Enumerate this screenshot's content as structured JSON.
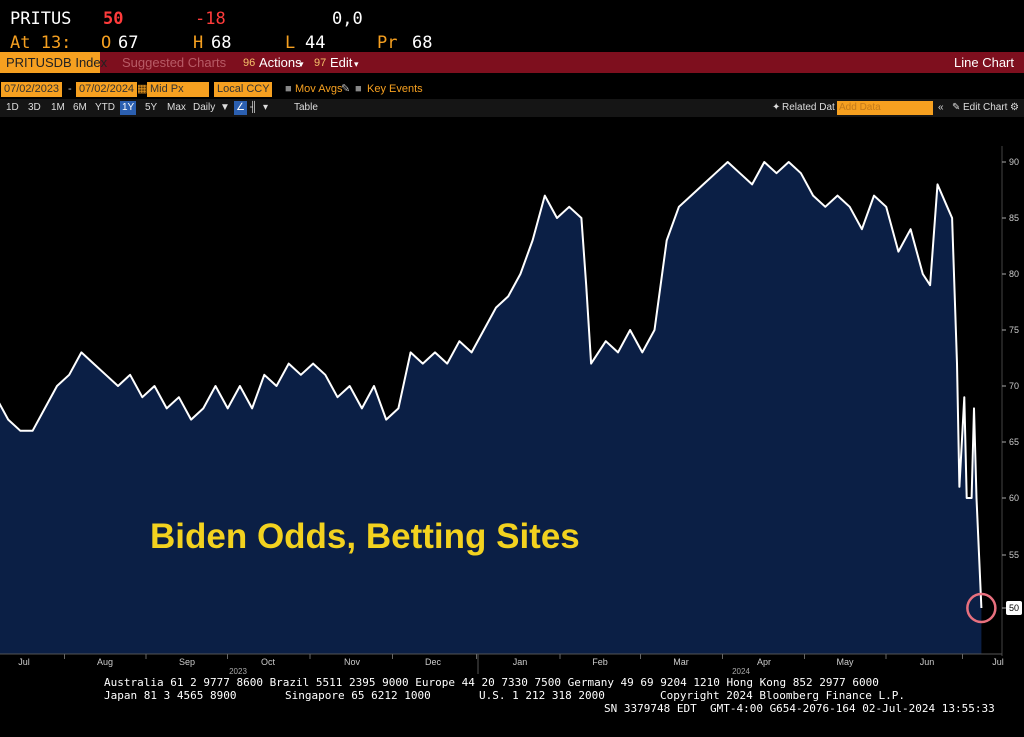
{
  "quote": {
    "ticker": "PRITUS",
    "last": "50",
    "change": "-18",
    "bid_ask": "0,0",
    "time_label": "At 13:",
    "open_label": "O",
    "open": "67",
    "high_label": "H",
    "high": "68",
    "low_label": "L",
    "low": "44",
    "prev_label": "Pr",
    "prev": "68"
  },
  "toolbar": {
    "security": "PRITUSDB Index",
    "suggested": "Suggested Charts",
    "actions_num": "96",
    "actions": "Actions",
    "edit_num": "97",
    "edit": "Edit",
    "chart_type": "Line Chart"
  },
  "settings": {
    "start_date": "07/02/2023",
    "end_date": "07/02/2024",
    "price_field": "Mid Px",
    "currency": "Local CCY",
    "mov_avgs": "Mov Avgs",
    "key_events": "Key Events"
  },
  "periods": [
    "1D",
    "3D",
    "1M",
    "6M",
    "YTD",
    "1Y",
    "5Y",
    "Max"
  ],
  "selected_period": "1Y",
  "frequency": "Daily",
  "table_label": "Table",
  "related_data": "Related Dat",
  "add_data_placeholder": "Add Data",
  "edit_chart": "Edit Chart",
  "colors": {
    "background": "#000000",
    "plot_fill": "#0b1f45",
    "line": "#ffffff",
    "title_text": "#f3d21f",
    "marker_circle": "#e8707e",
    "ticker_orange": "#f6a020",
    "toolbar_red": "#7e0f1e",
    "quote_change_red": "#ff3b3b"
  },
  "chart_data": {
    "type": "area",
    "title": "Biden Odds, Betting Sites",
    "x_tick_labels": [
      "Jul",
      "Aug",
      "Sep",
      "Oct",
      "Nov",
      "Dec",
      "Jan",
      "Feb",
      "Mar",
      "Apr",
      "May",
      "Jun",
      "Jul"
    ],
    "year_labels": [
      "2023",
      "2024"
    ],
    "y_ticks": [
      50,
      55,
      60,
      65,
      70,
      75,
      80,
      85,
      90
    ],
    "ylim": [
      44,
      92
    ],
    "last_value_label": "50",
    "x_unit": "days since Jul 3, 2023",
    "series": [
      {
        "points": [
          [
            0,
            69
          ],
          [
            5,
            67
          ],
          [
            10,
            66
          ],
          [
            15,
            66
          ],
          [
            20,
            68
          ],
          [
            25,
            70
          ],
          [
            30,
            71
          ],
          [
            35,
            73
          ],
          [
            40,
            72
          ],
          [
            45,
            71
          ],
          [
            50,
            70
          ],
          [
            55,
            71
          ],
          [
            60,
            69
          ],
          [
            65,
            70
          ],
          [
            70,
            68
          ],
          [
            75,
            69
          ],
          [
            80,
            67
          ],
          [
            85,
            68
          ],
          [
            90,
            70
          ],
          [
            95,
            68
          ],
          [
            100,
            70
          ],
          [
            105,
            68
          ],
          [
            110,
            71
          ],
          [
            115,
            70
          ],
          [
            120,
            72
          ],
          [
            125,
            71
          ],
          [
            130,
            72
          ],
          [
            135,
            71
          ],
          [
            140,
            69
          ],
          [
            145,
            70
          ],
          [
            150,
            68
          ],
          [
            155,
            70
          ],
          [
            160,
            67
          ],
          [
            165,
            68
          ],
          [
            170,
            73
          ],
          [
            175,
            72
          ],
          [
            180,
            73
          ],
          [
            185,
            72
          ],
          [
            190,
            74
          ],
          [
            195,
            73
          ],
          [
            200,
            75
          ],
          [
            205,
            77
          ],
          [
            210,
            78
          ],
          [
            215,
            80
          ],
          [
            220,
            83
          ],
          [
            225,
            87
          ],
          [
            230,
            85
          ],
          [
            235,
            86
          ],
          [
            240,
            85
          ],
          [
            242,
            79
          ],
          [
            244,
            72
          ],
          [
            250,
            74
          ],
          [
            255,
            73
          ],
          [
            260,
            75
          ],
          [
            265,
            73
          ],
          [
            270,
            75
          ],
          [
            275,
            83
          ],
          [
            280,
            86
          ],
          [
            285,
            87
          ],
          [
            290,
            88
          ],
          [
            295,
            89
          ],
          [
            300,
            90
          ],
          [
            305,
            89
          ],
          [
            310,
            88
          ],
          [
            315,
            90
          ],
          [
            320,
            89
          ],
          [
            325,
            90
          ],
          [
            330,
            89
          ],
          [
            335,
            87
          ],
          [
            340,
            86
          ],
          [
            345,
            87
          ],
          [
            350,
            86
          ],
          [
            355,
            84
          ],
          [
            360,
            87
          ],
          [
            365,
            86
          ],
          [
            370,
            82
          ],
          [
            375,
            84
          ],
          [
            380,
            80
          ],
          [
            383,
            79
          ],
          [
            386,
            88
          ],
          [
            390,
            86
          ],
          [
            392,
            85
          ],
          [
            394,
            72
          ],
          [
            395,
            61
          ],
          [
            397,
            69
          ],
          [
            398,
            60
          ],
          [
            400,
            60
          ],
          [
            401,
            68
          ],
          [
            402,
            60
          ],
          [
            404,
            50
          ]
        ]
      }
    ]
  },
  "footer": {
    "line1": "Australia 61 2 9777 8600 Brazil 5511 2395 9000 Europe 44 20 7330 7500 Germany 49 69 9204 1210 Hong Kong 852 2977 6000",
    "line2a": "Japan 81 3 4565 8900",
    "line2b": "Singapore 65 6212 1000",
    "line2c": "U.S. 1 212 318 2000",
    "line2d": "Copyright 2024 Bloomberg Finance L.P.",
    "line3": "SN 3379748 EDT  GMT-4:00 G654-2076-164 02-Jul-2024 13:55:33"
  }
}
